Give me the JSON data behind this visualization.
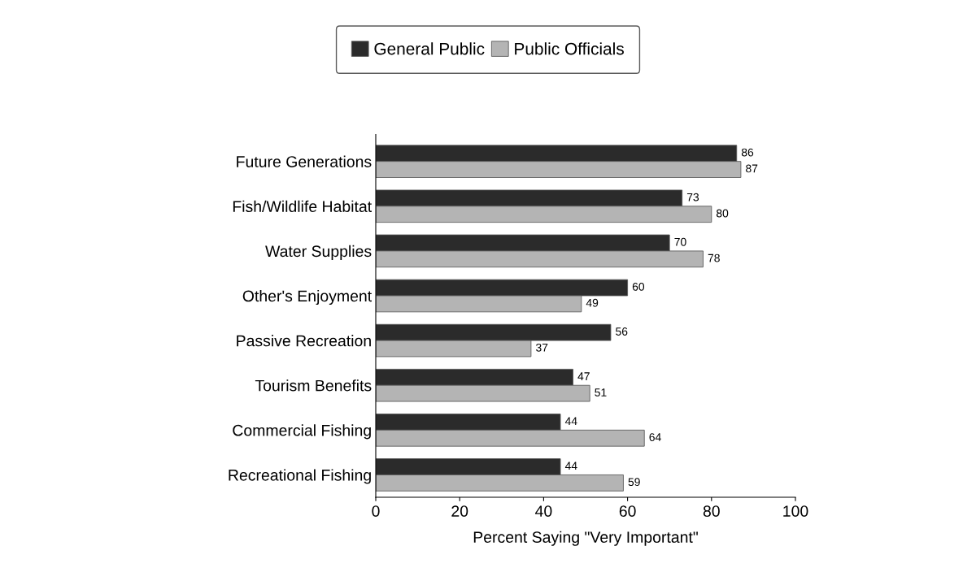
{
  "chart_data": {
    "type": "bar",
    "orientation": "horizontal",
    "categories": [
      "Future Generations",
      "Fish/Wildlife Habitat",
      "Water Supplies",
      "Other's Enjoyment",
      "Passive Recreation",
      "Tourism Benefits",
      "Commercial Fishing",
      "Recreational Fishing"
    ],
    "series": [
      {
        "name": "General Public",
        "color": "#2b2b2b",
        "values": [
          86,
          73,
          70,
          60,
          56,
          47,
          44,
          44
        ]
      },
      {
        "name": "Public Officials",
        "color": "#b4b4b4",
        "values": [
          87,
          80,
          78,
          49,
          37,
          51,
          64,
          59
        ]
      }
    ],
    "xlabel": "Percent Saying \"Very Important\"",
    "xlim": [
      0,
      100
    ],
    "xticks": [
      0,
      20,
      40,
      60,
      80,
      100
    ],
    "data_labels": true,
    "legend": "top",
    "grid": false
  }
}
